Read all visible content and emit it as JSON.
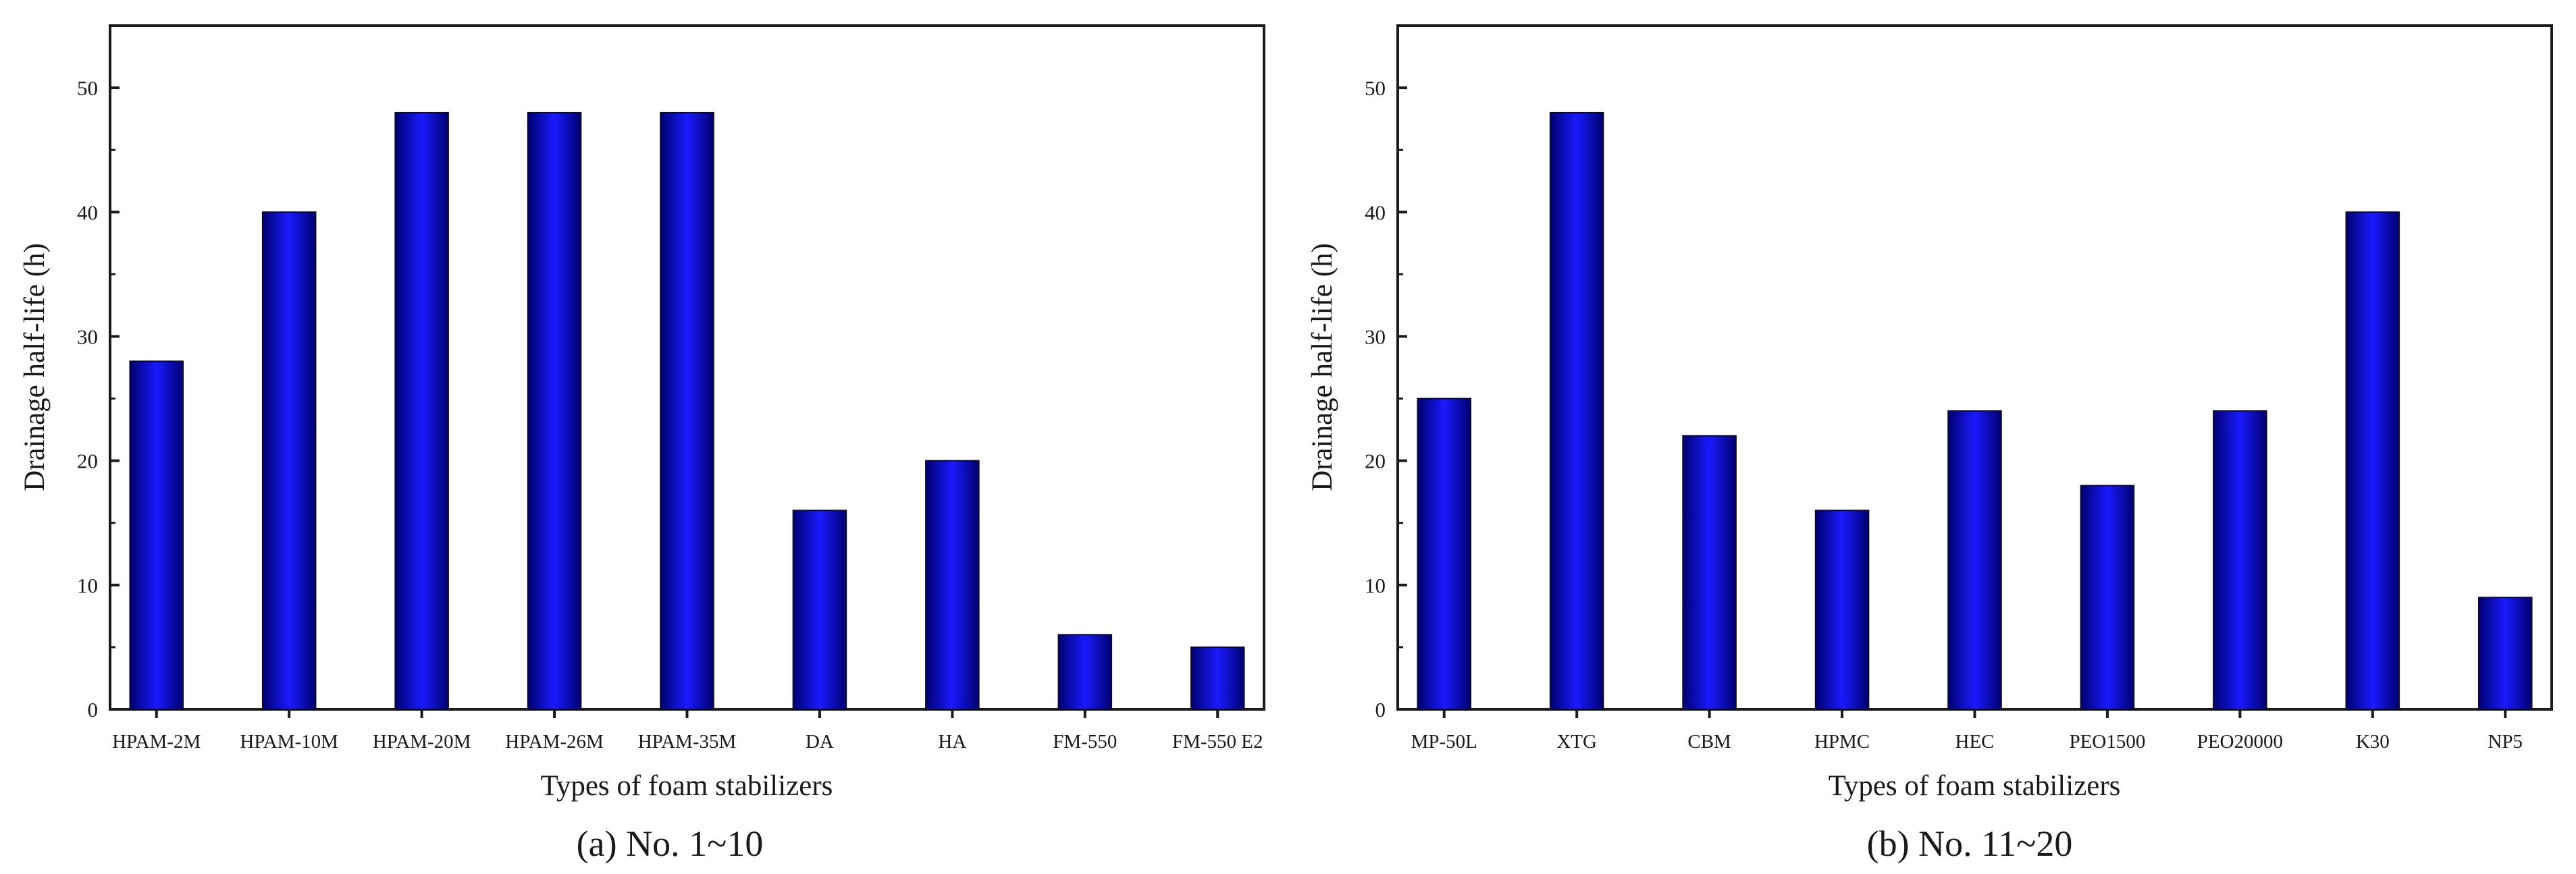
{
  "chart_data": [
    {
      "type": "bar",
      "caption": "(a) No. 1~10",
      "xlabel": "Types of foam stabilizers",
      "ylabel": "Drainage half-life (h)",
      "ylim": [
        0,
        55
      ],
      "yticks": [
        0,
        10,
        20,
        30,
        40,
        50
      ],
      "categories": [
        "HPAM-2M",
        "HPAM-10M",
        "HPAM-20M",
        "HPAM-26M",
        "HPAM-35M",
        "DA",
        "HA",
        "FM-550",
        "FM-550 E2"
      ],
      "values": [
        28,
        40,
        48,
        48,
        48,
        16,
        20,
        6,
        5
      ],
      "grid": false,
      "bar_color": "#0000e6"
    },
    {
      "type": "bar",
      "caption": "(b) No. 11~20",
      "xlabel": "Types of foam stabilizers",
      "ylabel": "Drainage half-life (h)",
      "ylim": [
        0,
        55
      ],
      "yticks": [
        0,
        10,
        20,
        30,
        40,
        50
      ],
      "categories": [
        "MP-50L",
        "XTG",
        "CBM",
        "HPMC",
        "HEC",
        "PEO1500",
        "PEO20000",
        "K30",
        "NP5"
      ],
      "values": [
        25,
        48,
        22,
        16,
        24,
        18,
        24,
        40,
        9
      ],
      "grid": false,
      "bar_color": "#0000e6"
    }
  ]
}
